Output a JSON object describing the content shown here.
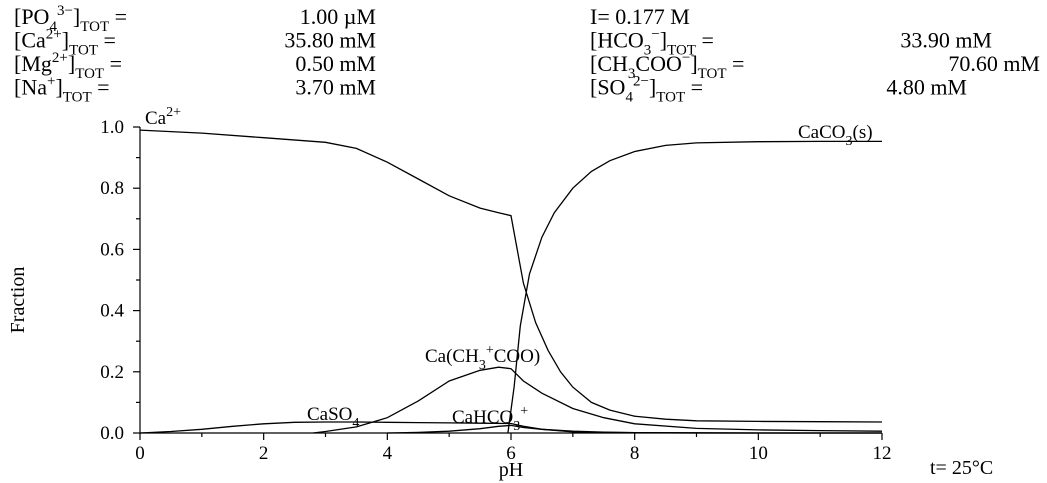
{
  "header": {
    "left": [
      {
        "base": "[PO",
        "sub": "4",
        "sup": "3−",
        "close": "]",
        "tot": "TOT",
        "eq": " =",
        "value": "1.00 µM"
      },
      {
        "base": "[Ca",
        "sub": "",
        "sup": "2+",
        "close": "]",
        "tot": "TOT",
        "eq": " =",
        "value": "35.80 mM"
      },
      {
        "base": "[Mg",
        "sub": "",
        "sup": "2+",
        "close": "]",
        "tot": "TOT",
        "eq": " =",
        "value": "0.50 mM"
      },
      {
        "base": "[Na",
        "sub": "",
        "sup": "+",
        "close": "]",
        "tot": "TOT",
        "eq": " =",
        "value": "3.70 mM"
      }
    ],
    "ionic_strength": "I= 0.177 M",
    "right": [
      {
        "base": "[HCO",
        "sub": "3",
        "sup": "−",
        "close": "]",
        "tot": "TOT",
        "eq": " =",
        "value": "33.90 mM"
      },
      {
        "base": "[CH",
        "sub": "3",
        "mid": "COO",
        "sup": "−",
        "close": "]",
        "tot": "TOT",
        "eq": " =",
        "value": "70.60 mM"
      },
      {
        "base": "[SO",
        "sub": "4",
        "sup": "2−",
        "close": "]",
        "tot": "TOT",
        "eq": " =",
        "value": "4.80 mM"
      }
    ]
  },
  "temperature_label": "t= 25°C",
  "chart_data": {
    "type": "line",
    "xlabel": "pH",
    "ylabel": "Fraction",
    "xlim": [
      0,
      12
    ],
    "ylim": [
      0,
      1
    ],
    "xticks": [
      "0",
      "2",
      "4",
      "6",
      "8",
      "10",
      "12"
    ],
    "yticks": [
      "0.0",
      "0.2",
      "0.4",
      "0.6",
      "0.8",
      "1.0"
    ],
    "grid": false,
    "series": [
      {
        "name": "Ca²⁺",
        "label": {
          "base": "Ca",
          "sup": "2+"
        },
        "x": [
          0,
          1,
          2,
          3,
          3.5,
          4,
          4.5,
          5,
          5.5,
          5.8,
          6.0,
          6.1,
          6.2,
          6.4,
          6.6,
          6.8,
          7.0,
          7.3,
          7.6,
          8,
          8.5,
          9,
          10,
          11,
          12
        ],
        "y": [
          0.99,
          0.98,
          0.965,
          0.95,
          0.93,
          0.885,
          0.83,
          0.775,
          0.735,
          0.72,
          0.71,
          0.6,
          0.49,
          0.36,
          0.27,
          0.2,
          0.15,
          0.1,
          0.075,
          0.055,
          0.045,
          0.04,
          0.038,
          0.037,
          0.036
        ]
      },
      {
        "name": "CaCO₃(s)",
        "label": {
          "base": "CaCO",
          "sub": "3",
          "tail": "(s)"
        },
        "x": [
          5.95,
          6.05,
          6.15,
          6.3,
          6.5,
          6.7,
          7.0,
          7.3,
          7.6,
          8,
          8.5,
          9,
          10,
          11,
          12
        ],
        "y": [
          0.0,
          0.15,
          0.35,
          0.52,
          0.64,
          0.72,
          0.8,
          0.855,
          0.89,
          0.92,
          0.94,
          0.948,
          0.952,
          0.953,
          0.953
        ]
      },
      {
        "name": "Ca(CH₃COO)⁺",
        "label": {
          "base": "Ca(CH",
          "sub": "3",
          "tail": "COO)",
          "sup": "+"
        },
        "x": [
          2.8,
          3,
          3.5,
          4,
          4.5,
          5,
          5.5,
          5.8,
          6.0,
          6.2,
          6.5,
          7,
          7.5,
          8,
          9,
          10,
          11,
          12
        ],
        "y": [
          0.0,
          0.005,
          0.02,
          0.05,
          0.105,
          0.17,
          0.205,
          0.215,
          0.21,
          0.17,
          0.13,
          0.08,
          0.05,
          0.03,
          0.015,
          0.01,
          0.008,
          0.006
        ]
      },
      {
        "name": "CaSO₄",
        "label": {
          "base": "CaSO",
          "sub": "4"
        },
        "x": [
          0,
          0.5,
          1,
          1.5,
          2,
          2.5,
          3,
          3.5,
          4,
          4.5,
          5,
          5.5,
          6,
          6.2,
          6.5,
          7,
          7.5,
          8,
          9,
          10,
          12
        ],
        "y": [
          0.0,
          0.005,
          0.012,
          0.022,
          0.03,
          0.035,
          0.036,
          0.036,
          0.035,
          0.034,
          0.033,
          0.032,
          0.031,
          0.022,
          0.012,
          0.004,
          0.002,
          0.001,
          0.0005,
          0.0,
          0.0
        ]
      },
      {
        "name": "CaHCO₃⁺",
        "label": {
          "base": "CaHCO",
          "sub": "3",
          "sup": "+"
        },
        "x": [
          4,
          4.5,
          5,
          5.5,
          5.8,
          6.0,
          6.2,
          6.5,
          7,
          7.5,
          8,
          9,
          12
        ],
        "y": [
          0.0,
          0.002,
          0.006,
          0.014,
          0.022,
          0.025,
          0.018,
          0.012,
          0.006,
          0.003,
          0.001,
          0.0,
          0.0
        ]
      }
    ]
  }
}
